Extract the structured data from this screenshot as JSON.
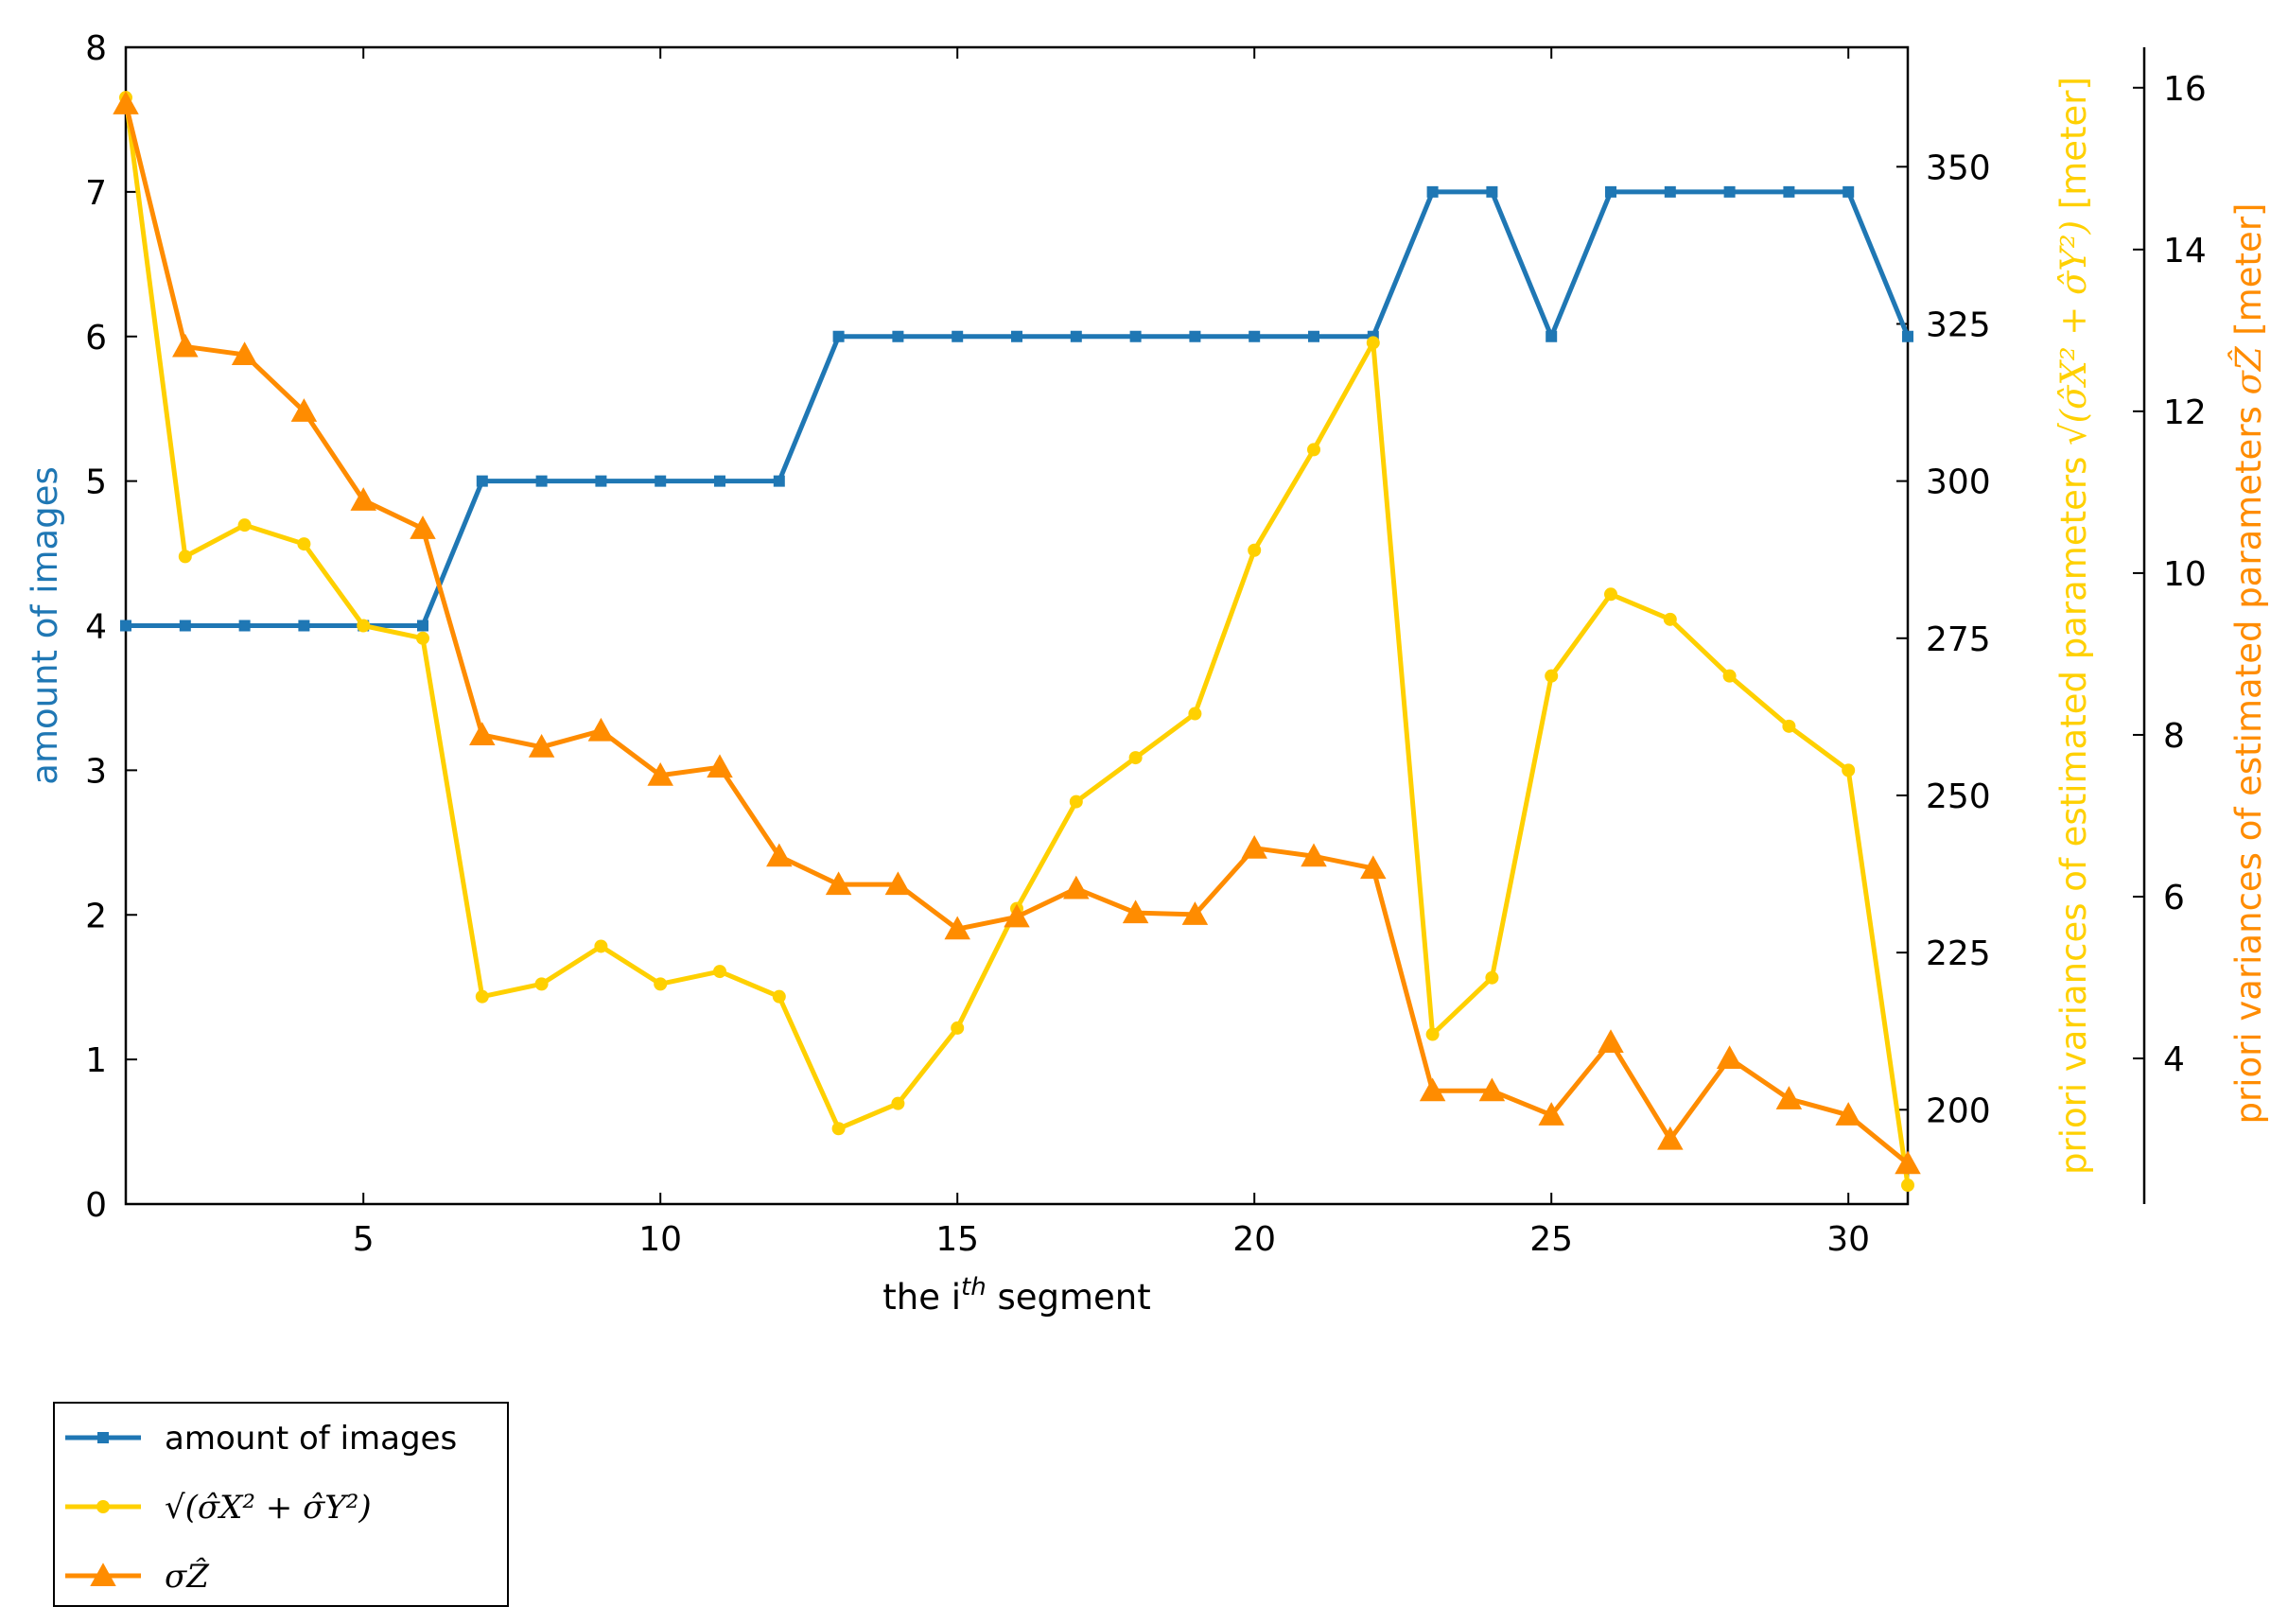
{
  "colors": {
    "images": "#1f77b4",
    "xy_variance": "#ffd000",
    "z_variance": "#ff8c00",
    "axis": "#000000"
  },
  "chart_data": {
    "type": "line",
    "xlabel": "the i^th segment",
    "xlabel_parts": {
      "pre": "the i",
      "sup": "th",
      "post": " segment"
    },
    "xlim": [
      1,
      31
    ],
    "xticks": [
      5,
      10,
      15,
      20,
      25,
      30
    ],
    "grid": false,
    "legend_placement": "below-left, outside plot",
    "axes": {
      "left": {
        "label": "amount of images",
        "ylim": [
          0,
          8
        ],
        "ticks": [
          0,
          1,
          2,
          3,
          4,
          5,
          6,
          7,
          8
        ],
        "color": "#1f77b4"
      },
      "right1": {
        "label": "priori variances of estimated parameters √(σ̂X² + σ̂Y²) [meter]",
        "label_pre": "priori variances of estimated parameters ",
        "label_expr": "√(σ̂X² + σ̂Y²)",
        "label_post": " [meter]",
        "ylim": [
          185,
          369
        ],
        "ticks": [
          200,
          225,
          250,
          275,
          300,
          325,
          350
        ],
        "color": "#ffd000"
      },
      "right2": {
        "label": "priori variances of estimated parameters σẐ [meter]",
        "label_pre": "priori variances of estimated parameters ",
        "label_expr": "σẐ",
        "label_post": " [meter]",
        "ylim": [
          2.2,
          16.5
        ],
        "ticks": [
          4,
          6,
          8,
          10,
          12,
          14,
          16
        ],
        "color": "#ff8c00"
      }
    },
    "x": [
      1,
      2,
      3,
      4,
      5,
      6,
      7,
      8,
      9,
      10,
      11,
      12,
      13,
      14,
      15,
      16,
      17,
      18,
      19,
      20,
      21,
      22,
      23,
      24,
      25,
      26,
      27,
      28,
      29,
      30,
      31
    ],
    "series": [
      {
        "name": "amount of images",
        "axis": "left",
        "marker": "square",
        "color": "#1f77b4",
        "values": [
          4,
          4,
          4,
          4,
          4,
          4,
          5,
          5,
          5,
          5,
          5,
          5,
          6,
          6,
          6,
          6,
          6,
          6,
          6,
          6,
          6,
          6,
          7,
          7,
          6,
          7,
          7,
          7,
          7,
          7,
          6
        ]
      },
      {
        "name": "√(σ̂X² + σ̂Y²)",
        "axis": "right1",
        "marker": "circle",
        "color": "#ffd000",
        "values": [
          361,
          288,
          293,
          290,
          277,
          275,
          218,
          220,
          226,
          220,
          222,
          218,
          197,
          201,
          213,
          232,
          249,
          256,
          263,
          289,
          305,
          322,
          212,
          221,
          269,
          282,
          278,
          269,
          261,
          254,
          188
        ]
      },
      {
        "name": "σẐ",
        "axis": "right2",
        "marker": "triangle",
        "color": "#ff8c00",
        "values": [
          15.8,
          12.8,
          12.7,
          12.0,
          10.9,
          10.55,
          8.0,
          7.85,
          8.05,
          7.5,
          7.6,
          6.5,
          6.15,
          6.15,
          5.6,
          5.75,
          6.1,
          5.8,
          5.78,
          6.6,
          6.5,
          6.35,
          3.6,
          3.6,
          3.3,
          4.2,
          3.0,
          4.0,
          3.5,
          3.3,
          2.7
        ]
      }
    ],
    "legend": [
      {
        "label": "amount of images",
        "marker": "square",
        "color": "#1f77b4"
      },
      {
        "label": "√(σ̂X² + σ̂Y²)",
        "marker": "circle",
        "color": "#ffd000"
      },
      {
        "label": "σẐ",
        "marker": "triangle",
        "color": "#ff8c00"
      }
    ]
  }
}
